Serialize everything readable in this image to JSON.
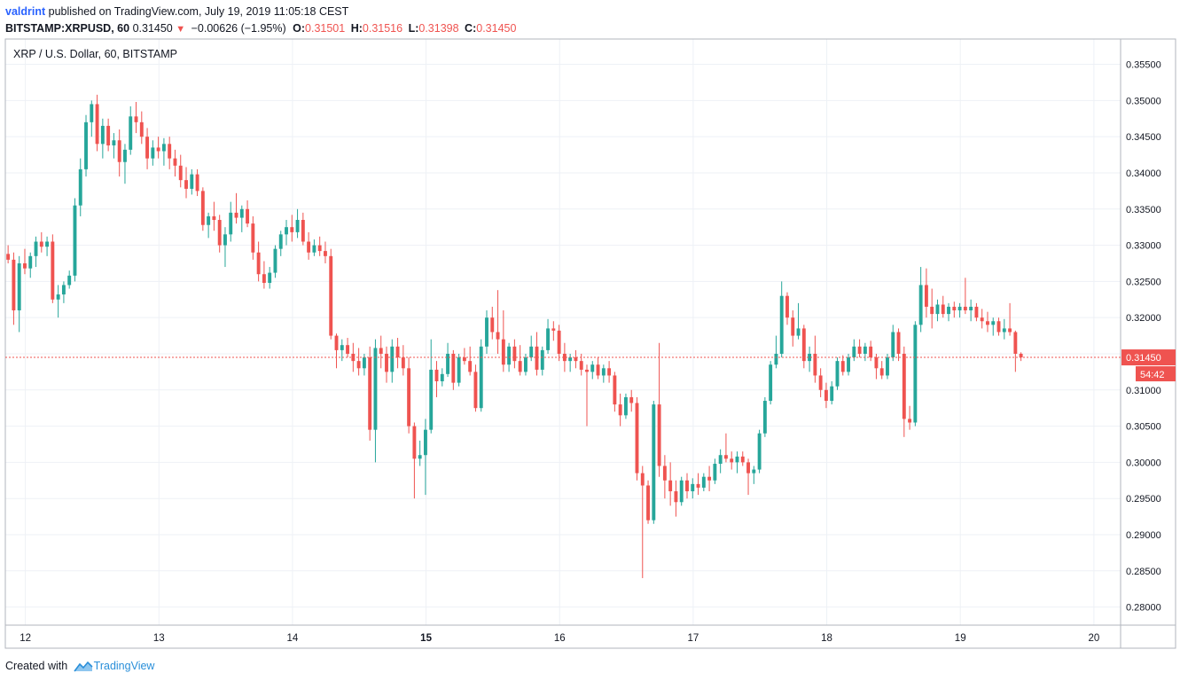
{
  "header": {
    "author": "valdrint",
    "published": "published on TradingView.com, July 19, 2019 11:05:18 CEST",
    "symbol": "BITSTAMP:XRPUSD, 60",
    "last": "0.31450",
    "change_arrow": "▼",
    "change": "−0.00626 (−1.95%)",
    "o_label": "O:",
    "o_value": "0.31501",
    "h_label": "H:",
    "h_value": "0.31516",
    "l_label": "L:",
    "l_value": "0.31398",
    "c_label": "C:",
    "c_value": "0.31450"
  },
  "footer": {
    "created_with": "Created with",
    "brand": "TradingView",
    "logo_icon": "tradingview-logo-icon"
  },
  "colors": {
    "up": "#26a69a",
    "down": "#ef5350",
    "grid": "#eef1f6",
    "frame": "#b2b5be",
    "price_line": "#ef5350"
  },
  "chart_data": {
    "type": "candlestick",
    "title": "XRP / U.S. Dollar, 60, BITSTAMP",
    "last_price": 0.3145,
    "last_price_label": "0.31450",
    "countdown": "54:42",
    "ylim": [
      0.2775,
      0.3585
    ],
    "yticks": [
      0.355,
      0.35,
      0.345,
      0.34,
      0.335,
      0.33,
      0.325,
      0.32,
      0.315,
      0.31,
      0.305,
      0.3,
      0.295,
      0.29,
      0.285,
      0.28
    ],
    "ytick_labels": [
      "0.35500",
      "0.35000",
      "0.34500",
      "0.34000",
      "0.33500",
      "0.33000",
      "0.32500",
      "0.32000",
      "0.31500",
      "0.31000",
      "0.30500",
      "0.30000",
      "0.29500",
      "0.29000",
      "0.28500",
      "0.28000"
    ],
    "xlim": [
      11.85,
      20.2
    ],
    "xticks": [
      12,
      13,
      14,
      15,
      16,
      17,
      18,
      19,
      20
    ],
    "xtick_labels": [
      "12",
      "13",
      "14",
      "15",
      "16",
      "17",
      "18",
      "19",
      "20"
    ],
    "xtick_bold": [
      false,
      false,
      false,
      true,
      false,
      false,
      false,
      false,
      false
    ],
    "candles_start_day": 11.85,
    "candle_hours": 1,
    "ohlc": [
      [
        0.3288,
        0.33,
        0.3275,
        0.328
      ],
      [
        0.328,
        0.329,
        0.319,
        0.321
      ],
      [
        0.321,
        0.3285,
        0.318,
        0.3275
      ],
      [
        0.3275,
        0.3295,
        0.326,
        0.3268
      ],
      [
        0.3268,
        0.329,
        0.3255,
        0.3285
      ],
      [
        0.3285,
        0.3312,
        0.327,
        0.3305
      ],
      [
        0.3305,
        0.3318,
        0.329,
        0.3298
      ],
      [
        0.3298,
        0.3312,
        0.3285,
        0.3305
      ],
      [
        0.3305,
        0.3315,
        0.322,
        0.3225
      ],
      [
        0.3225,
        0.3245,
        0.32,
        0.3232
      ],
      [
        0.3232,
        0.325,
        0.322,
        0.3245
      ],
      [
        0.3245,
        0.3265,
        0.324,
        0.3258
      ],
      [
        0.3258,
        0.3365,
        0.325,
        0.3355
      ],
      [
        0.3355,
        0.342,
        0.334,
        0.3405
      ],
      [
        0.3405,
        0.348,
        0.3395,
        0.347
      ],
      [
        0.347,
        0.35,
        0.345,
        0.3495
      ],
      [
        0.3495,
        0.3508,
        0.343,
        0.344
      ],
      [
        0.344,
        0.3475,
        0.342,
        0.3465
      ],
      [
        0.3465,
        0.3475,
        0.343,
        0.3438
      ],
      [
        0.3438,
        0.3455,
        0.342,
        0.3445
      ],
      [
        0.3445,
        0.346,
        0.3395,
        0.3415
      ],
      [
        0.3415,
        0.344,
        0.3385,
        0.3432
      ],
      [
        0.3432,
        0.3492,
        0.3425,
        0.3478
      ],
      [
        0.3478,
        0.3498,
        0.3455,
        0.347
      ],
      [
        0.347,
        0.3485,
        0.344,
        0.345
      ],
      [
        0.345,
        0.3462,
        0.3405,
        0.342
      ],
      [
        0.342,
        0.3445,
        0.341,
        0.3435
      ],
      [
        0.3435,
        0.345,
        0.342,
        0.343
      ],
      [
        0.343,
        0.3448,
        0.341,
        0.344
      ],
      [
        0.344,
        0.345,
        0.3405,
        0.342
      ],
      [
        0.342,
        0.3432,
        0.3395,
        0.341
      ],
      [
        0.341,
        0.3425,
        0.338,
        0.339
      ],
      [
        0.339,
        0.3408,
        0.3365,
        0.3378
      ],
      [
        0.3378,
        0.3405,
        0.337,
        0.3398
      ],
      [
        0.3398,
        0.3405,
        0.3368,
        0.3375
      ],
      [
        0.3375,
        0.338,
        0.332,
        0.3328
      ],
      [
        0.3328,
        0.3345,
        0.331,
        0.334
      ],
      [
        0.334,
        0.336,
        0.332,
        0.3335
      ],
      [
        0.3335,
        0.3342,
        0.329,
        0.33
      ],
      [
        0.33,
        0.3325,
        0.327,
        0.3315
      ],
      [
        0.3315,
        0.336,
        0.3305,
        0.3345
      ],
      [
        0.3345,
        0.3372,
        0.333,
        0.3338
      ],
      [
        0.3338,
        0.3355,
        0.3318,
        0.335
      ],
      [
        0.335,
        0.3362,
        0.3325,
        0.333
      ],
      [
        0.333,
        0.334,
        0.328,
        0.329
      ],
      [
        0.329,
        0.3305,
        0.325,
        0.326
      ],
      [
        0.326,
        0.3278,
        0.324,
        0.3248
      ],
      [
        0.3248,
        0.327,
        0.324,
        0.3262
      ],
      [
        0.3262,
        0.33,
        0.3255,
        0.3295
      ],
      [
        0.3295,
        0.332,
        0.3285,
        0.3315
      ],
      [
        0.3315,
        0.3335,
        0.33,
        0.3325
      ],
      [
        0.3325,
        0.3342,
        0.3305,
        0.3318
      ],
      [
        0.3318,
        0.335,
        0.331,
        0.3335
      ],
      [
        0.3335,
        0.3345,
        0.33,
        0.3305
      ],
      [
        0.3305,
        0.3318,
        0.328,
        0.329
      ],
      [
        0.329,
        0.3308,
        0.3285,
        0.33
      ],
      [
        0.33,
        0.3312,
        0.3285,
        0.3292
      ],
      [
        0.3292,
        0.3305,
        0.3275,
        0.3285
      ],
      [
        0.3285,
        0.3295,
        0.317,
        0.3175
      ],
      [
        0.3175,
        0.3178,
        0.313,
        0.3155
      ],
      [
        0.3155,
        0.317,
        0.314,
        0.3162
      ],
      [
        0.3162,
        0.3172,
        0.3145,
        0.315
      ],
      [
        0.315,
        0.3165,
        0.3125,
        0.314
      ],
      [
        0.314,
        0.3158,
        0.312,
        0.313
      ],
      [
        0.313,
        0.315,
        0.312,
        0.3145
      ],
      [
        0.3145,
        0.316,
        0.303,
        0.3045
      ],
      [
        0.3045,
        0.317,
        0.3,
        0.3158
      ],
      [
        0.3158,
        0.3175,
        0.313,
        0.315
      ],
      [
        0.315,
        0.316,
        0.311,
        0.3125
      ],
      [
        0.3125,
        0.317,
        0.311,
        0.316
      ],
      [
        0.316,
        0.3172,
        0.313,
        0.3145
      ],
      [
        0.3145,
        0.3162,
        0.312,
        0.313
      ],
      [
        0.313,
        0.3145,
        0.304,
        0.305
      ],
      [
        0.305,
        0.3055,
        0.295,
        0.3005
      ],
      [
        0.3005,
        0.303,
        0.2995,
        0.301
      ],
      [
        0.301,
        0.306,
        0.2955,
        0.3045
      ],
      [
        0.3045,
        0.317,
        0.304,
        0.3128
      ],
      [
        0.3128,
        0.314,
        0.309,
        0.3112
      ],
      [
        0.3112,
        0.313,
        0.3105,
        0.3122
      ],
      [
        0.3122,
        0.3165,
        0.3118,
        0.315
      ],
      [
        0.315,
        0.3155,
        0.31,
        0.311
      ],
      [
        0.311,
        0.315,
        0.3105,
        0.3145
      ],
      [
        0.3145,
        0.3158,
        0.3135,
        0.314
      ],
      [
        0.314,
        0.316,
        0.312,
        0.3125
      ],
      [
        0.3125,
        0.3135,
        0.307,
        0.3075
      ],
      [
        0.3075,
        0.317,
        0.307,
        0.316
      ],
      [
        0.316,
        0.321,
        0.315,
        0.32
      ],
      [
        0.32,
        0.3215,
        0.317,
        0.318
      ],
      [
        0.318,
        0.3238,
        0.315,
        0.317
      ],
      [
        0.317,
        0.321,
        0.3125,
        0.3135
      ],
      [
        0.3135,
        0.3165,
        0.3125,
        0.316
      ],
      [
        0.316,
        0.317,
        0.313,
        0.314
      ],
      [
        0.314,
        0.3162,
        0.312,
        0.3125
      ],
      [
        0.3125,
        0.315,
        0.312,
        0.3145
      ],
      [
        0.3145,
        0.3175,
        0.314,
        0.316
      ],
      [
        0.316,
        0.318,
        0.312,
        0.3128
      ],
      [
        0.3128,
        0.316,
        0.312,
        0.3155
      ],
      [
        0.3155,
        0.3198,
        0.315,
        0.3185
      ],
      [
        0.3185,
        0.3195,
        0.3168,
        0.3182
      ],
      [
        0.3182,
        0.319,
        0.314,
        0.315
      ],
      [
        0.315,
        0.3165,
        0.3125,
        0.314
      ],
      [
        0.314,
        0.315,
        0.3125,
        0.3145
      ],
      [
        0.3145,
        0.3155,
        0.313,
        0.314
      ],
      [
        0.314,
        0.315,
        0.312,
        0.3128
      ],
      [
        0.3128,
        0.3135,
        0.305,
        0.3125
      ],
      [
        0.3125,
        0.314,
        0.3115,
        0.3135
      ],
      [
        0.3135,
        0.3145,
        0.3115,
        0.312
      ],
      [
        0.312,
        0.3135,
        0.311,
        0.313
      ],
      [
        0.313,
        0.314,
        0.311,
        0.312
      ],
      [
        0.312,
        0.3125,
        0.307,
        0.308
      ],
      [
        0.308,
        0.3095,
        0.305,
        0.3065
      ],
      [
        0.3065,
        0.3095,
        0.306,
        0.309
      ],
      [
        0.309,
        0.31,
        0.307,
        0.3082
      ],
      [
        0.3082,
        0.309,
        0.2975,
        0.2985
      ],
      [
        0.2985,
        0.2995,
        0.284,
        0.2968
      ],
      [
        0.2968,
        0.2975,
        0.2915,
        0.292
      ],
      [
        0.292,
        0.3085,
        0.2915,
        0.308
      ],
      [
        0.308,
        0.3165,
        0.298,
        0.2995
      ],
      [
        0.2995,
        0.301,
        0.295,
        0.2975
      ],
      [
        0.2975,
        0.3,
        0.294,
        0.296
      ],
      [
        0.296,
        0.2975,
        0.2925,
        0.2945
      ],
      [
        0.2945,
        0.298,
        0.294,
        0.2975
      ],
      [
        0.2975,
        0.2985,
        0.295,
        0.296
      ],
      [
        0.296,
        0.2978,
        0.295,
        0.297
      ],
      [
        0.297,
        0.2985,
        0.2955,
        0.2965
      ],
      [
        0.2965,
        0.2985,
        0.296,
        0.298
      ],
      [
        0.298,
        0.2995,
        0.296,
        0.2975
      ],
      [
        0.2975,
        0.3005,
        0.297,
        0.2998
      ],
      [
        0.2998,
        0.3018,
        0.2985,
        0.301
      ],
      [
        0.301,
        0.304,
        0.3,
        0.3005
      ],
      [
        0.3005,
        0.3015,
        0.299,
        0.3
      ],
      [
        0.3,
        0.3015,
        0.2985,
        0.3008
      ],
      [
        0.3008,
        0.3015,
        0.2995,
        0.3
      ],
      [
        0.3,
        0.3005,
        0.2955,
        0.2985
      ],
      [
        0.2985,
        0.2995,
        0.297,
        0.299
      ],
      [
        0.299,
        0.3045,
        0.2985,
        0.304
      ],
      [
        0.304,
        0.309,
        0.3035,
        0.3085
      ],
      [
        0.3085,
        0.314,
        0.308,
        0.3135
      ],
      [
        0.3135,
        0.3175,
        0.313,
        0.315
      ],
      [
        0.315,
        0.325,
        0.3145,
        0.323
      ],
      [
        0.323,
        0.3235,
        0.319,
        0.32
      ],
      [
        0.32,
        0.321,
        0.316,
        0.3175
      ],
      [
        0.3175,
        0.322,
        0.317,
        0.3185
      ],
      [
        0.3185,
        0.319,
        0.313,
        0.314
      ],
      [
        0.314,
        0.316,
        0.3125,
        0.315
      ],
      [
        0.315,
        0.3175,
        0.311,
        0.312
      ],
      [
        0.312,
        0.313,
        0.309,
        0.31
      ],
      [
        0.31,
        0.311,
        0.3075,
        0.3085
      ],
      [
        0.3085,
        0.3112,
        0.308,
        0.3105
      ],
      [
        0.3105,
        0.3145,
        0.31,
        0.314
      ],
      [
        0.314,
        0.3148,
        0.312,
        0.3125
      ],
      [
        0.3125,
        0.315,
        0.312,
        0.3145
      ],
      [
        0.3145,
        0.317,
        0.314,
        0.316
      ],
      [
        0.316,
        0.317,
        0.3145,
        0.315
      ],
      [
        0.315,
        0.3165,
        0.314,
        0.316
      ],
      [
        0.316,
        0.3168,
        0.314,
        0.3145
      ],
      [
        0.3145,
        0.315,
        0.3115,
        0.313
      ],
      [
        0.313,
        0.314,
        0.3115,
        0.312
      ],
      [
        0.312,
        0.315,
        0.3115,
        0.3145
      ],
      [
        0.3145,
        0.319,
        0.314,
        0.318
      ],
      [
        0.318,
        0.3185,
        0.314,
        0.315
      ],
      [
        0.315,
        0.316,
        0.3035,
        0.306
      ],
      [
        0.306,
        0.3078,
        0.3045,
        0.3055
      ],
      [
        0.3055,
        0.3195,
        0.305,
        0.319
      ],
      [
        0.319,
        0.327,
        0.318,
        0.3245
      ],
      [
        0.3245,
        0.3268,
        0.32,
        0.3215
      ],
      [
        0.3215,
        0.324,
        0.3185,
        0.3205
      ],
      [
        0.3205,
        0.3225,
        0.3195,
        0.3218
      ],
      [
        0.3218,
        0.323,
        0.32,
        0.3205
      ],
      [
        0.3205,
        0.322,
        0.3195,
        0.3215
      ],
      [
        0.3215,
        0.3222,
        0.32,
        0.321
      ],
      [
        0.321,
        0.322,
        0.32,
        0.3215
      ],
      [
        0.3215,
        0.3255,
        0.3205,
        0.321
      ],
      [
        0.321,
        0.3225,
        0.3195,
        0.3215
      ],
      [
        0.3215,
        0.322,
        0.3195,
        0.32
      ],
      [
        0.32,
        0.3212,
        0.3185,
        0.3195
      ],
      [
        0.3195,
        0.3208,
        0.318,
        0.319
      ],
      [
        0.319,
        0.32,
        0.3175,
        0.3195
      ],
      [
        0.3195,
        0.32,
        0.3175,
        0.318
      ],
      [
        0.318,
        0.3198,
        0.317,
        0.3185
      ],
      [
        0.3185,
        0.322,
        0.3175,
        0.318
      ],
      [
        0.318,
        0.3182,
        0.3125,
        0.315
      ],
      [
        0.315,
        0.3152,
        0.314,
        0.3145
      ]
    ]
  }
}
